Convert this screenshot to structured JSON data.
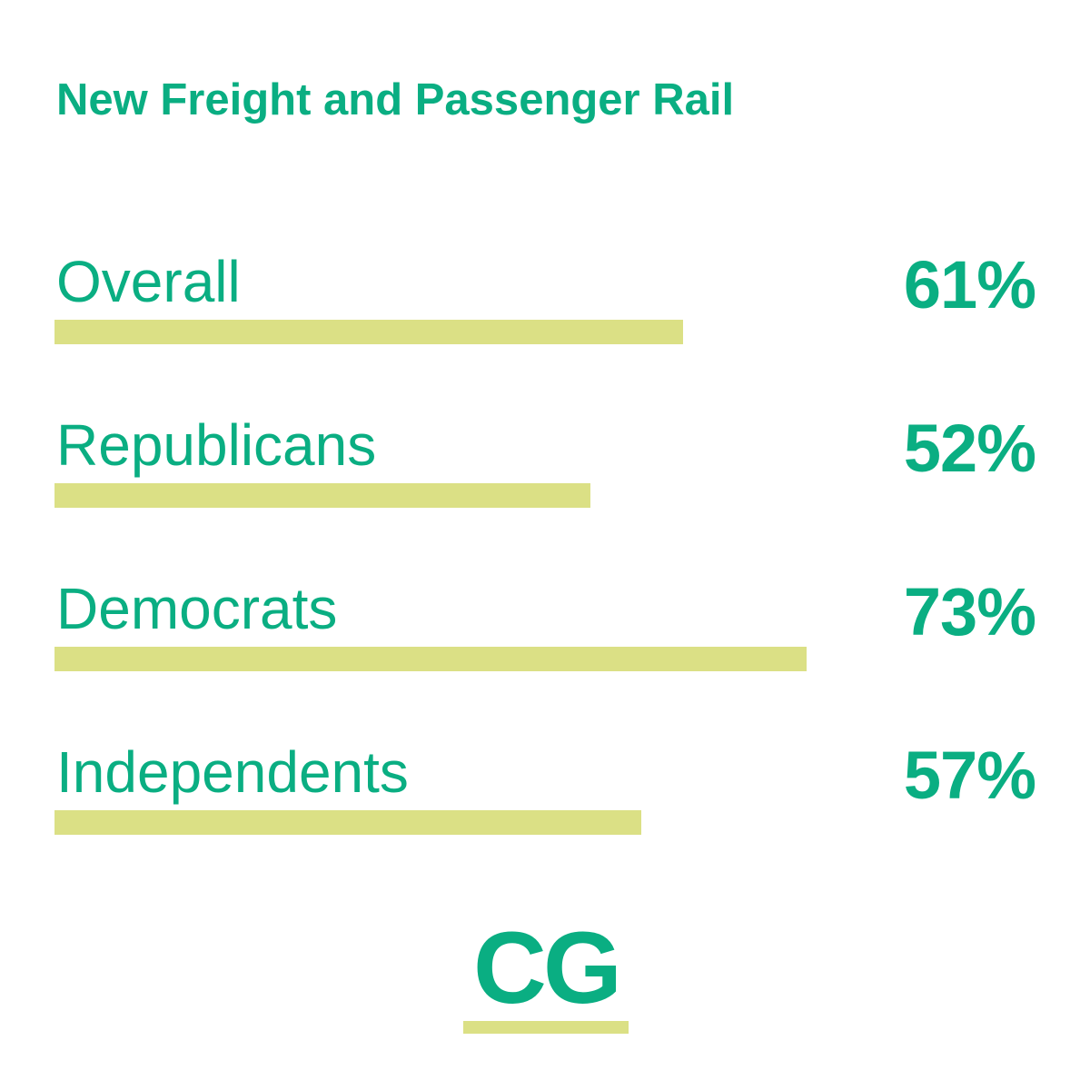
{
  "colors": {
    "text": "#0aae82",
    "bar": "#dbe085",
    "background": "#ffffff"
  },
  "chart_data": {
    "type": "bar",
    "orientation": "horizontal",
    "title": "New Freight and Passenger Rail",
    "categories": [
      "Overall",
      "Republicans",
      "Democrats",
      "Independents"
    ],
    "values": [
      61,
      52,
      73,
      57
    ],
    "value_labels": [
      "61%",
      "52%",
      "73%",
      "57%"
    ],
    "unit": "%",
    "xlim": [
      0,
      100
    ],
    "grid": false,
    "legend": "none"
  },
  "logo": {
    "text": "CG"
  }
}
